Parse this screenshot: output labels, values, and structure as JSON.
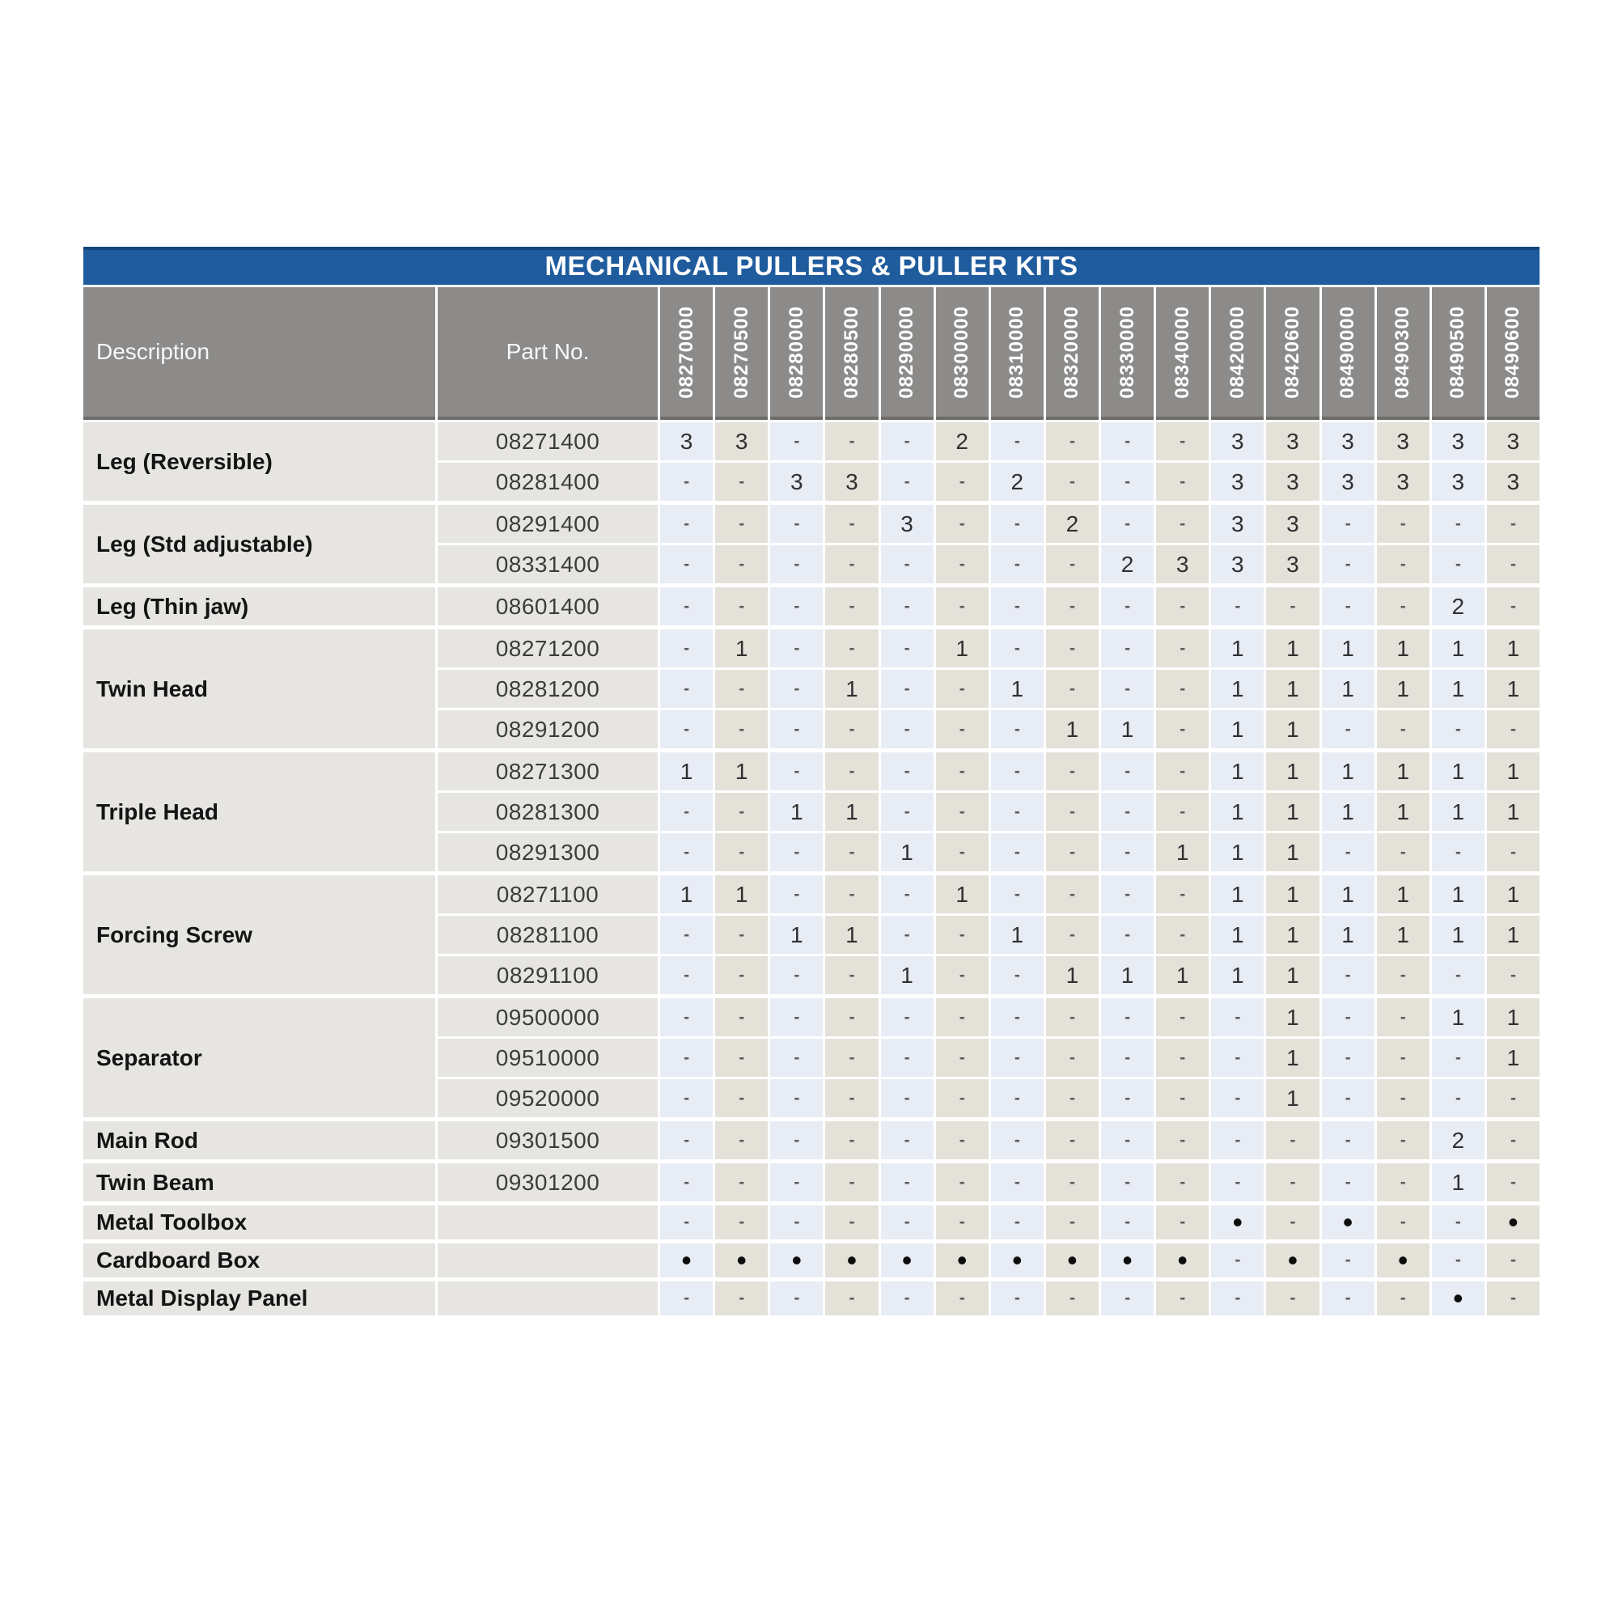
{
  "title": "MECHANICAL PULLERS & PULLER KITS",
  "columns": {
    "description_label": "Description",
    "part_no_label": "Part No.",
    "kit_numbers": [
      "08270000",
      "08270500",
      "08280000",
      "08280500",
      "08290000",
      "08300000",
      "08310000",
      "08320000",
      "08330000",
      "08340000",
      "08420000",
      "08420600",
      "08490000",
      "08490300",
      "08490500",
      "08490600"
    ]
  },
  "legend": {
    "quantity_symbols": [
      "1",
      "2",
      "3"
    ],
    "not_included_symbol": "-",
    "included_symbol": "•"
  },
  "groups": [
    {
      "description": "Leg (Reversible)",
      "rows": [
        {
          "part_no": "08271400",
          "values": [
            "3",
            "3",
            "-",
            "-",
            "-",
            "2",
            "-",
            "-",
            "-",
            "-",
            "3",
            "3",
            "3",
            "3",
            "3",
            "3"
          ]
        },
        {
          "part_no": "08281400",
          "values": [
            "-",
            "-",
            "3",
            "3",
            "-",
            "-",
            "2",
            "-",
            "-",
            "-",
            "3",
            "3",
            "3",
            "3",
            "3",
            "3"
          ]
        }
      ]
    },
    {
      "description": "Leg (Std adjustable)",
      "rows": [
        {
          "part_no": "08291400",
          "values": [
            "-",
            "-",
            "-",
            "-",
            "3",
            "-",
            "-",
            "2",
            "-",
            "-",
            "3",
            "3",
            "-",
            "-",
            "-",
            "-"
          ]
        },
        {
          "part_no": "08331400",
          "values": [
            "-",
            "-",
            "-",
            "-",
            "-",
            "-",
            "-",
            "-",
            "2",
            "3",
            "3",
            "3",
            "-",
            "-",
            "-",
            "-"
          ]
        }
      ]
    },
    {
      "description": "Leg (Thin jaw)",
      "rows": [
        {
          "part_no": "08601400",
          "values": [
            "-",
            "-",
            "-",
            "-",
            "-",
            "-",
            "-",
            "-",
            "-",
            "-",
            "-",
            "-",
            "-",
            "-",
            "2",
            "-"
          ]
        }
      ]
    },
    {
      "description": "Twin Head",
      "rows": [
        {
          "part_no": "08271200",
          "values": [
            "-",
            "1",
            "-",
            "-",
            "-",
            "1",
            "-",
            "-",
            "-",
            "-",
            "1",
            "1",
            "1",
            "1",
            "1",
            "1"
          ]
        },
        {
          "part_no": "08281200",
          "values": [
            "-",
            "-",
            "-",
            "1",
            "-",
            "-",
            "1",
            "-",
            "-",
            "-",
            "1",
            "1",
            "1",
            "1",
            "1",
            "1"
          ]
        },
        {
          "part_no": "08291200",
          "values": [
            "-",
            "-",
            "-",
            "-",
            "-",
            "-",
            "-",
            "1",
            "1",
            "-",
            "1",
            "1",
            "-",
            "-",
            "-",
            "-"
          ]
        }
      ]
    },
    {
      "description": "Triple Head",
      "rows": [
        {
          "part_no": "08271300",
          "values": [
            "1",
            "1",
            "-",
            "-",
            "-",
            "-",
            "-",
            "-",
            "-",
            "-",
            "1",
            "1",
            "1",
            "1",
            "1",
            "1"
          ]
        },
        {
          "part_no": "08281300",
          "values": [
            "-",
            "-",
            "1",
            "1",
            "-",
            "-",
            "-",
            "-",
            "-",
            "-",
            "1",
            "1",
            "1",
            "1",
            "1",
            "1"
          ]
        },
        {
          "part_no": "08291300",
          "values": [
            "-",
            "-",
            "-",
            "-",
            "1",
            "-",
            "-",
            "-",
            "-",
            "1",
            "1",
            "1",
            "-",
            "-",
            "-",
            "-"
          ]
        }
      ]
    },
    {
      "description": "Forcing Screw",
      "rows": [
        {
          "part_no": "08271100",
          "values": [
            "1",
            "1",
            "-",
            "-",
            "-",
            "1",
            "-",
            "-",
            "-",
            "-",
            "1",
            "1",
            "1",
            "1",
            "1",
            "1"
          ]
        },
        {
          "part_no": "08281100",
          "values": [
            "-",
            "-",
            "1",
            "1",
            "-",
            "-",
            "1",
            "-",
            "-",
            "-",
            "1",
            "1",
            "1",
            "1",
            "1",
            "1"
          ]
        },
        {
          "part_no": "08291100",
          "values": [
            "-",
            "-",
            "-",
            "-",
            "1",
            "-",
            "-",
            "1",
            "1",
            "1",
            "1",
            "1",
            "-",
            "-",
            "-",
            "-"
          ]
        }
      ]
    },
    {
      "description": "Separator",
      "rows": [
        {
          "part_no": "09500000",
          "values": [
            "-",
            "-",
            "-",
            "-",
            "-",
            "-",
            "-",
            "-",
            "-",
            "-",
            "-",
            "1",
            "-",
            "-",
            "1",
            "1"
          ]
        },
        {
          "part_no": "09510000",
          "values": [
            "-",
            "-",
            "-",
            "-",
            "-",
            "-",
            "-",
            "-",
            "-",
            "-",
            "-",
            "1",
            "-",
            "-",
            "-",
            "1"
          ]
        },
        {
          "part_no": "09520000",
          "values": [
            "-",
            "-",
            "-",
            "-",
            "-",
            "-",
            "-",
            "-",
            "-",
            "-",
            "-",
            "1",
            "-",
            "-",
            "-",
            "-"
          ]
        }
      ]
    },
    {
      "description": "Main Rod",
      "rows": [
        {
          "part_no": "09301500",
          "values": [
            "-",
            "-",
            "-",
            "-",
            "-",
            "-",
            "-",
            "-",
            "-",
            "-",
            "-",
            "-",
            "-",
            "-",
            "2",
            "-"
          ]
        }
      ]
    },
    {
      "description": "Twin Beam",
      "rows": [
        {
          "part_no": "09301200",
          "values": [
            "-",
            "-",
            "-",
            "-",
            "-",
            "-",
            "-",
            "-",
            "-",
            "-",
            "-",
            "-",
            "-",
            "-",
            "1",
            "-"
          ]
        }
      ]
    },
    {
      "description": "Metal Toolbox",
      "rows": [
        {
          "part_no": "",
          "values": [
            "-",
            "-",
            "-",
            "-",
            "-",
            "-",
            "-",
            "-",
            "-",
            "-",
            "•",
            "-",
            "•",
            "-",
            "-",
            "•"
          ]
        }
      ]
    },
    {
      "description": "Cardboard Box",
      "rows": [
        {
          "part_no": "",
          "values": [
            "•",
            "•",
            "•",
            "•",
            "•",
            "•",
            "•",
            "•",
            "•",
            "•",
            "-",
            "•",
            "-",
            "•",
            "-",
            "-"
          ]
        }
      ]
    },
    {
      "description": "Metal Display Panel",
      "rows": [
        {
          "part_no": "",
          "values": [
            "-",
            "-",
            "-",
            "-",
            "-",
            "-",
            "-",
            "-",
            "-",
            "-",
            "-",
            "-",
            "-",
            "-",
            "•",
            "-"
          ]
        }
      ]
    }
  ],
  "colors": {
    "title_bar": "#1f5c9e",
    "header_bg": "#8c8b89",
    "col_odd_blue": "#e8ecf5",
    "col_even_gray": "#e4e1d9",
    "label_bg": "#e7e5e2"
  }
}
